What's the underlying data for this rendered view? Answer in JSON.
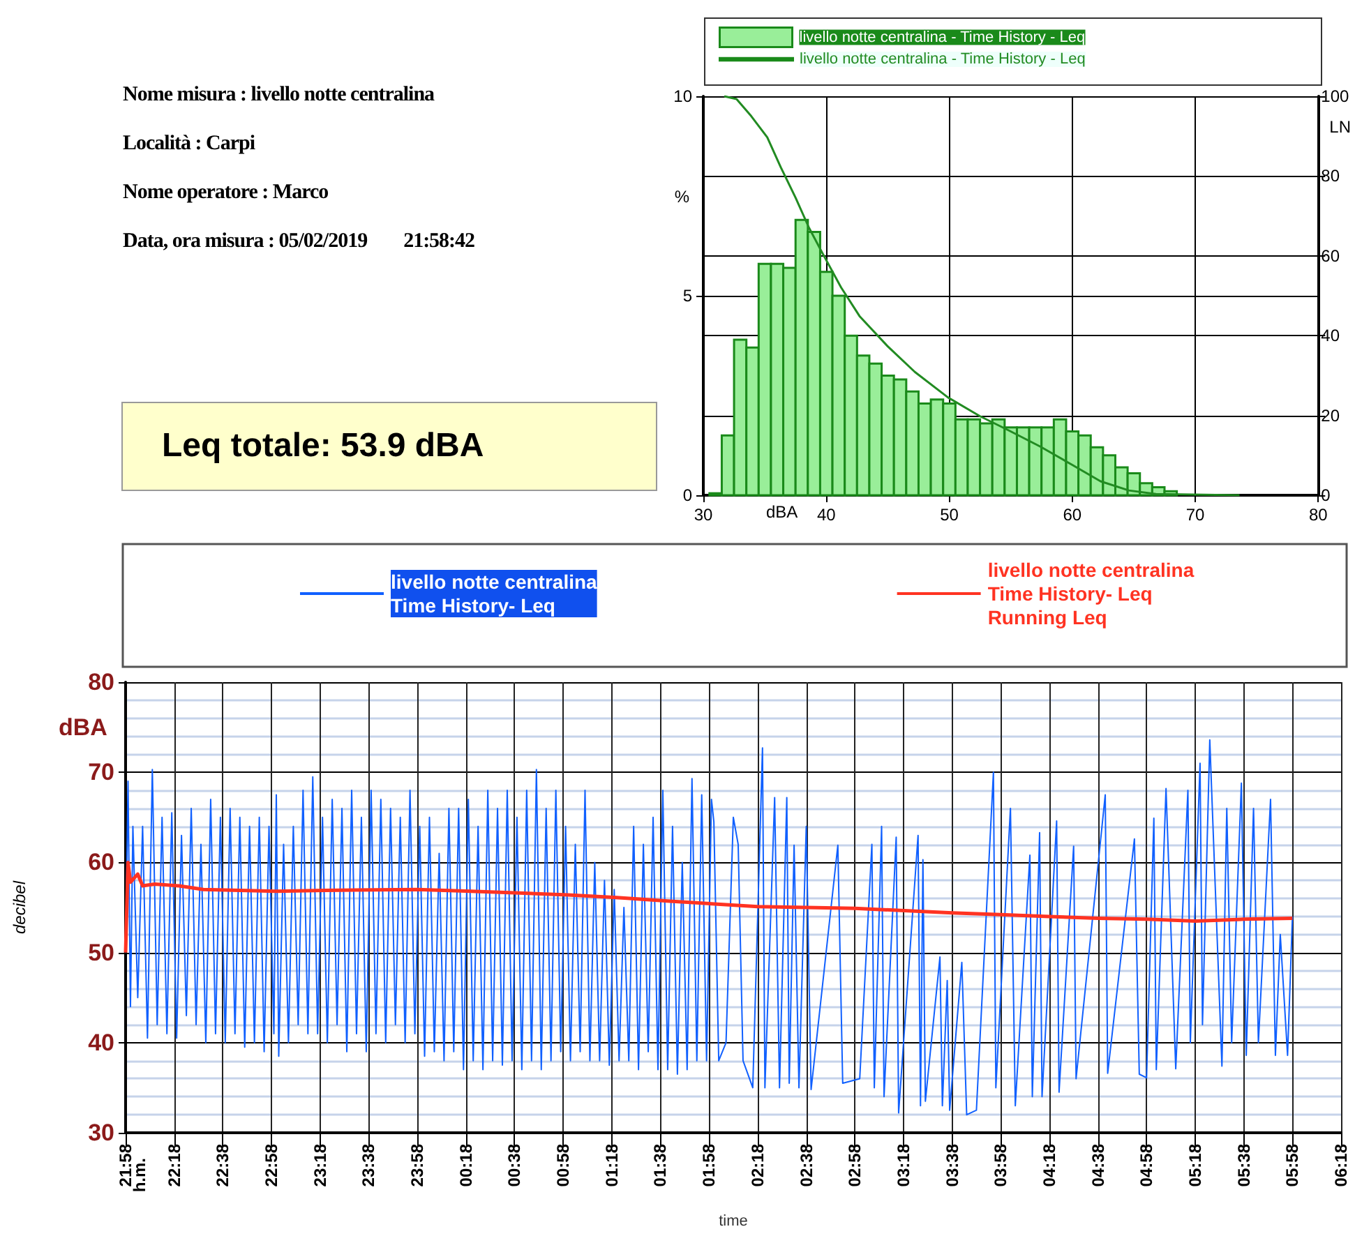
{
  "chart_data": [
    {
      "type": "other",
      "title": "Leq totale: 53.9 dBA",
      "annotations": [
        "Nome misura : livello notte centralina",
        "Località : Carpi",
        "Nome operatore : Marco",
        "Data, ora misura : 05/02/2019        21:58:42"
      ]
    },
    {
      "type": "histogram",
      "xlabel": "dBA",
      "ylabel": "%",
      "y2label": "LN",
      "legend": "top",
      "grid": true,
      "marker": "none",
      "bins": [
        30.5,
        31.5,
        32.5,
        33.5,
        34.5,
        35.5,
        36.5,
        37.5,
        38.5,
        39.5,
        40.5,
        41.5,
        42.5,
        43.5,
        44.5,
        45.5,
        46.5,
        47.5,
        48.5,
        49.5,
        50.5,
        51.5,
        52.5,
        53.5,
        54.5,
        55.5,
        56.5,
        57.5,
        58.5,
        59.5,
        60.5,
        61.5,
        62.5,
        63.5,
        64.5,
        65.5,
        66.5,
        67.5,
        68.5,
        69.5
      ],
      "xlim": [
        30,
        80
      ],
      "xticks": [
        30,
        40,
        50,
        60,
        70,
        80
      ],
      "ylim": [
        0,
        10
      ],
      "yticks": [
        0,
        5,
        10
      ],
      "y2lim": [
        0,
        100
      ],
      "y2ticks": [
        0,
        20,
        40,
        60,
        80,
        100
      ],
      "series": [
        {
          "name": "livello notte centralina - Time History - Leq",
          "color": "#99ee99",
          "values": [
            0.05,
            1.5,
            3.9,
            3.7,
            5.8,
            5.8,
            5.7,
            6.9,
            6.6,
            5.6,
            5.0,
            4.0,
            3.5,
            3.3,
            3.0,
            2.9,
            2.6,
            2.3,
            2.4,
            2.3,
            1.9,
            1.9,
            1.8,
            1.9,
            1.7,
            1.7,
            1.7,
            1.7,
            1.9,
            1.6,
            1.5,
            1.2,
            1.0,
            0.7,
            0.55,
            0.3,
            0.2,
            0.1,
            null
          ]
        },
        {
          "name": "livello notte centralina - Time History - Leq",
          "type": "line",
          "axis": "y2",
          "color": "#228b22",
          "x": [
            31.7,
            32.7,
            33.9,
            35.2,
            36.3,
            37.5,
            38.6,
            39.7,
            41.2,
            42.7,
            45,
            47.2,
            49.9,
            52.5,
            54.8,
            57.4,
            60,
            62.3,
            64.6,
            66.8,
            73.6
          ],
          "values": [
            100,
            99.3,
            95,
            89.7,
            82.2,
            74.6,
            67,
            60.6,
            52.1,
            44.9,
            37.3,
            30.9,
            24.5,
            19.8,
            16.3,
            12.2,
            7.6,
            3.5,
            1.2,
            0.3,
            0
          ]
        }
      ]
    },
    {
      "type": "line",
      "xlabel": "time",
      "ylabel": "decibel",
      "legend": "top",
      "grid": true,
      "marker": "none",
      "annotations": [
        "dBA",
        "h.m."
      ],
      "xlim": [
        "2019-02-05T21:58",
        "2019-02-06T06:18"
      ],
      "xticks": [
        {
          "value": "2019-02-05T21:58",
          "label": "21:58"
        },
        {
          "value": "2019-02-05T22:18",
          "label": "22:18"
        },
        {
          "value": "2019-02-05T22:38",
          "label": "22:38"
        },
        {
          "value": "2019-02-05T22:58",
          "label": "22:58"
        },
        {
          "value": "2019-02-05T23:18",
          "label": "23:18"
        },
        {
          "value": "2019-02-05T23:38",
          "label": "23:38"
        },
        {
          "value": "2019-02-05T23:58",
          "label": "23:58"
        },
        {
          "value": "2019-02-06T00:18",
          "label": "00:18"
        },
        {
          "value": "2019-02-06T00:38",
          "label": "00:38"
        },
        {
          "value": "2019-02-06T00:58",
          "label": "00:58"
        },
        {
          "value": "2019-02-06T01:18",
          "label": "01:18"
        },
        {
          "value": "2019-02-06T01:38",
          "label": "01:38"
        },
        {
          "value": "2019-02-06T01:58",
          "label": "01:58"
        },
        {
          "value": "2019-02-06T02:18",
          "label": "02:18"
        },
        {
          "value": "2019-02-06T02:38",
          "label": "02:38"
        },
        {
          "value": "2019-02-06T02:58",
          "label": "02:58"
        },
        {
          "value": "2019-02-06T03:18",
          "label": "03:18"
        },
        {
          "value": "2019-02-06T03:38",
          "label": "03:38"
        },
        {
          "value": "2019-02-06T03:58",
          "label": "03:58"
        },
        {
          "value": "2019-02-06T04:18",
          "label": "04:18"
        },
        {
          "value": "2019-02-06T04:38",
          "label": "04:38"
        },
        {
          "value": "2019-02-06T04:58",
          "label": "04:58"
        },
        {
          "value": "2019-02-06T05:18",
          "label": "05:18"
        },
        {
          "value": "2019-02-06T05:38",
          "label": "05:38"
        },
        {
          "value": "2019-02-06T05:58",
          "label": "05:58"
        },
        {
          "value": "2019-02-06T06:18",
          "label": "06:18"
        }
      ],
      "ylim": [
        30,
        80
      ],
      "yticks": [
        30,
        40,
        50,
        60,
        70,
        80
      ],
      "series": [
        {
          "name": "livello notte centralina\nTime History- Leq",
          "color": "#1060ff",
          "x": [
            "2019-02-05T21:58",
            "2019-02-05T21:59",
            "2019-02-05T22:00",
            "2019-02-05T22:01",
            "2019-02-05T22:03",
            "2019-02-05T22:05",
            "2019-02-05T22:07",
            "2019-02-05T22:09",
            "2019-02-05T22:11",
            "2019-02-05T22:13",
            "2019-02-05T22:15",
            "2019-02-05T22:17",
            "2019-02-05T22:19",
            "2019-02-05T22:21",
            "2019-02-05T22:23",
            "2019-02-05T22:25",
            "2019-02-05T22:27",
            "2019-02-05T22:29",
            "2019-02-05T22:31",
            "2019-02-05T22:33",
            "2019-02-05T22:35",
            "2019-02-05T22:37",
            "2019-02-05T22:39",
            "2019-02-05T22:41",
            "2019-02-05T22:43",
            "2019-02-05T22:45",
            "2019-02-05T22:47",
            "2019-02-05T22:49",
            "2019-02-05T22:51",
            "2019-02-05T22:53",
            "2019-02-05T22:55",
            "2019-02-05T22:57",
            "2019-02-05T22:59",
            "2019-02-05T23:00",
            "2019-02-05T23:01",
            "2019-02-05T23:03",
            "2019-02-05T23:05",
            "2019-02-05T23:07",
            "2019-02-05T23:09",
            "2019-02-05T23:11",
            "2019-02-05T23:13",
            "2019-02-05T23:15",
            "2019-02-05T23:17",
            "2019-02-05T23:19",
            "2019-02-05T23:21",
            "2019-02-05T23:23",
            "2019-02-05T23:25",
            "2019-02-05T23:27",
            "2019-02-05T23:29",
            "2019-02-05T23:31",
            "2019-02-05T23:33",
            "2019-02-05T23:35",
            "2019-02-05T23:37",
            "2019-02-05T23:39",
            "2019-02-05T23:41",
            "2019-02-05T23:43",
            "2019-02-05T23:45",
            "2019-02-05T23:47",
            "2019-02-05T23:49",
            "2019-02-05T23:51",
            "2019-02-05T23:53",
            "2019-02-05T23:55",
            "2019-02-05T23:57",
            "2019-02-05T23:59",
            "2019-02-06T00:01",
            "2019-02-06T00:03",
            "2019-02-06T00:05",
            "2019-02-06T00:07",
            "2019-02-06T00:09",
            "2019-02-06T00:11",
            "2019-02-06T00:13",
            "2019-02-06T00:15",
            "2019-02-06T00:17",
            "2019-02-06T00:19",
            "2019-02-06T00:21",
            "2019-02-06T00:23",
            "2019-02-06T00:25",
            "2019-02-06T00:27",
            "2019-02-06T00:29",
            "2019-02-06T00:31",
            "2019-02-06T00:33",
            "2019-02-06T00:35",
            "2019-02-06T00:37",
            "2019-02-06T00:39",
            "2019-02-06T00:41",
            "2019-02-06T00:43",
            "2019-02-06T00:45",
            "2019-02-06T00:47",
            "2019-02-06T00:49",
            "2019-02-06T00:51",
            "2019-02-06T00:53",
            "2019-02-06T00:55",
            "2019-02-06T00:57",
            "2019-02-06T00:59",
            "2019-02-06T01:01",
            "2019-02-06T01:03",
            "2019-02-06T01:05",
            "2019-02-06T01:07",
            "2019-02-06T01:09",
            "2019-02-06T01:11",
            "2019-02-06T01:13",
            "2019-02-06T01:15",
            "2019-02-06T01:17",
            "2019-02-06T01:19",
            "2019-02-06T01:21",
            "2019-02-06T01:23",
            "2019-02-06T01:25",
            "2019-02-06T01:27",
            "2019-02-06T01:29",
            "2019-02-06T01:31",
            "2019-02-06T01:33",
            "2019-02-06T01:35",
            "2019-02-06T01:37",
            "2019-02-06T01:39",
            "2019-02-06T01:41",
            "2019-02-06T01:43",
            "2019-02-06T01:45",
            "2019-02-06T01:47",
            "2019-02-06T01:49",
            "2019-02-06T01:51",
            "2019-02-06T01:53",
            "2019-02-06T01:55",
            "2019-02-06T01:57",
            "2019-02-06T01:59",
            "2019-02-06T02:00",
            "2019-02-06T02:02",
            "2019-02-06T02:05",
            "2019-02-06T02:08",
            "2019-02-06T02:10",
            "2019-02-06T02:12",
            "2019-02-06T02:16",
            "2019-02-06T02:20",
            "2019-02-06T02:21",
            "2019-02-06T02:25",
            "2019-02-06T02:27",
            "2019-02-06T02:30",
            "2019-02-06T02:31",
            "2019-02-06T02:33",
            "2019-02-06T02:35",
            "2019-02-06T02:38",
            "2019-02-06T02:40",
            "2019-02-06T02:51",
            "2019-02-06T02:53",
            "2019-02-06T03:00",
            "2019-02-06T03:05",
            "2019-02-06T03:06",
            "2019-02-06T03:09",
            "2019-02-06T03:10",
            "2019-02-06T03:15",
            "2019-02-06T03:16",
            "2019-02-06T03:24",
            "2019-02-06T03:25",
            "2019-02-06T03:26",
            "2019-02-06T03:27",
            "2019-02-06T03:33",
            "2019-02-06T03:34",
            "2019-02-06T03:36",
            "2019-02-06T03:37",
            "2019-02-06T03:42",
            "2019-02-06T03:44",
            "2019-02-06T03:48",
            "2019-02-06T03:55",
            "2019-02-06T03:56",
            "2019-02-06T04:02",
            "2019-02-06T04:04",
            "2019-02-06T04:10",
            "2019-02-06T04:11",
            "2019-02-06T04:14",
            "2019-02-06T04:15",
            "2019-02-06T04:21",
            "2019-02-06T04:22",
            "2019-02-06T04:28",
            "2019-02-06T04:29",
            "2019-02-06T04:41",
            "2019-02-06T04:42",
            "2019-02-06T04:53",
            "2019-02-06T04:55",
            "2019-02-06T04:58",
            "2019-02-06T05:01",
            "2019-02-06T05:02",
            "2019-02-06T05:06",
            "2019-02-06T05:10",
            "2019-02-06T05:15",
            "2019-02-06T05:16",
            "2019-02-06T05:20",
            "2019-02-06T05:21",
            "2019-02-06T05:24",
            "2019-02-06T05:29",
            "2019-02-06T05:31",
            "2019-02-06T05:33",
            "2019-02-06T05:37",
            "2019-02-06T05:39",
            "2019-02-06T05:42",
            "2019-02-06T05:44",
            "2019-02-06T05:49",
            "2019-02-06T05:51",
            "2019-02-06T05:53",
            "2019-02-06T05:56",
            "2019-02-06T05:58"
          ],
          "values": [
            50,
            69,
            44,
            64,
            45,
            64,
            40.5,
            70.3,
            42,
            65,
            41,
            65.5,
            40.5,
            63,
            43,
            66,
            42,
            62,
            40,
            67,
            41,
            65,
            40,
            66,
            41,
            65,
            39.5,
            64,
            40,
            65,
            39,
            64,
            41,
            67.5,
            38.5,
            62,
            40,
            64,
            42,
            68,
            41,
            69.5,
            41,
            65,
            40,
            67,
            42,
            66,
            39,
            68,
            41,
            65,
            39,
            68,
            41,
            67,
            40,
            66,
            42,
            65,
            40,
            68,
            41,
            64,
            38.5,
            65,
            39,
            61,
            38,
            66,
            39,
            66,
            37,
            67,
            38,
            64,
            37,
            68,
            38,
            66,
            37.5,
            68,
            38,
            65,
            37,
            68,
            38,
            70.3,
            37,
            66,
            38,
            68,
            39,
            64,
            38,
            62,
            39,
            68,
            38,
            60,
            38,
            58,
            37.5,
            57,
            38,
            55,
            38,
            64,
            37,
            62,
            39,
            65,
            37,
            68,
            37,
            64,
            36.5,
            60,
            37,
            69.3,
            38,
            67.5,
            38,
            67,
            64.5,
            38,
            40,
            65,
            62,
            38,
            35,
            72.7,
            35,
            67.2,
            35,
            67.2,
            35.5,
            61.9,
            35,
            64,
            34.8,
            61.9,
            35.5,
            36,
            62,
            35,
            64,
            34,
            62.8,
            32.2,
            63,
            33,
            60.3,
            33.5,
            49.5,
            33,
            46.9,
            32.5,
            48.9,
            32,
            32.5,
            70,
            35,
            66,
            33,
            60.8,
            34,
            63.3,
            34,
            64.6,
            34.5,
            61.8,
            36,
            67.5,
            36.6,
            62.6,
            36.5,
            36.1,
            64.9,
            37,
            68.2,
            37.1,
            68,
            40,
            71,
            42,
            73.6,
            37.4,
            66,
            40,
            68.8,
            38.6,
            66,
            40,
            67,
            38.6,
            52,
            38.6,
            54
          ]
        },
        {
          "name": "livello notte centralina\nTime History- Leq\nRunning Leq",
          "color": "#ff3322",
          "x": [
            "2019-02-05T21:58",
            "2019-02-05T21:59",
            "2019-02-05T22:00",
            "2019-02-05T22:03",
            "2019-02-05T22:05",
            "2019-02-05T22:10",
            "2019-02-05T22:20",
            "2019-02-05T22:30",
            "2019-02-05T22:45",
            "2019-02-05T23:00",
            "2019-02-05T23:20",
            "2019-02-05T23:58",
            "2019-02-06T00:20",
            "2019-02-06T00:40",
            "2019-02-06T01:00",
            "2019-02-06T01:20",
            "2019-02-06T01:42",
            "2019-02-06T02:18",
            "2019-02-06T02:58",
            "2019-02-06T03:38",
            "2019-02-06T03:58",
            "2019-02-06T04:18",
            "2019-02-06T04:38",
            "2019-02-06T04:58",
            "2019-02-06T05:18",
            "2019-02-06T05:38",
            "2019-02-06T05:58"
          ],
          "values": [
            50,
            60,
            57.8,
            58.7,
            57.4,
            57.6,
            57.4,
            57,
            56.9,
            56.8,
            56.9,
            57,
            56.8,
            56.6,
            56.4,
            56.1,
            55.7,
            55.1,
            54.9,
            54.4,
            54.2,
            54,
            53.8,
            53.7,
            53.5,
            53.7,
            53.8
          ]
        }
      ]
    }
  ]
}
